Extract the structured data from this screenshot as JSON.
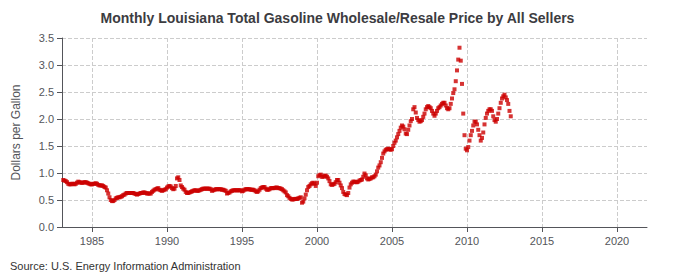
{
  "chart_data": {
    "type": "scatter",
    "title": "Monthly Louisiana Total Gasoline Wholesale/Resale Price by All Sellers",
    "ylabel": "Dollars per Gallon",
    "annotations": [
      "Source: U.S. Energy Information Administration"
    ],
    "color": "#CC0000",
    "marker": "square",
    "grid": true,
    "xlim": [
      1983,
      2022
    ],
    "ylim": [
      0.0,
      3.5
    ],
    "xticks": [
      1985,
      1990,
      1995,
      2000,
      2005,
      2010,
      2015,
      2020
    ],
    "yticks": [
      {
        "value": 0,
        "label": "0.0"
      },
      0.5,
      {
        "value": 1,
        "label": "1.0"
      },
      1.5,
      {
        "value": 2,
        "label": "2.0"
      },
      2.5,
      {
        "value": 3,
        "label": "3.0"
      },
      3.5
    ],
    "x": [
      1983.0833,
      1983.1667,
      1983.25,
      1983.3333,
      1983.4167,
      1983.5,
      1983.5833,
      1983.6667,
      1983.75,
      1983.8333,
      1983.9167,
      1984,
      1984.0833,
      1984.1667,
      1984.25,
      1984.3333,
      1984.4167,
      1984.5,
      1984.5833,
      1984.6667,
      1984.75,
      1984.8333,
      1984.9167,
      1985,
      1985.0833,
      1985.1667,
      1985.25,
      1985.3333,
      1985.4167,
      1985.5,
      1985.5833,
      1985.6667,
      1985.75,
      1985.8333,
      1985.9167,
      1986,
      1986.0833,
      1986.1667,
      1986.25,
      1986.3333,
      1986.4167,
      1986.5,
      1986.5833,
      1986.6667,
      1986.75,
      1986.8333,
      1986.9167,
      1987,
      1987.0833,
      1987.1667,
      1987.25,
      1987.3333,
      1987.4167,
      1987.5,
      1987.5833,
      1987.6667,
      1987.75,
      1987.8333,
      1987.9167,
      1988,
      1988.0833,
      1988.1667,
      1988.25,
      1988.3333,
      1988.4167,
      1988.5,
      1988.5833,
      1988.6667,
      1988.75,
      1988.8333,
      1988.9167,
      1989,
      1989.0833,
      1989.1667,
      1989.25,
      1989.3333,
      1989.4167,
      1989.5,
      1989.5833,
      1989.6667,
      1989.75,
      1989.8333,
      1989.9167,
      1990,
      1990.0833,
      1990.1667,
      1990.25,
      1990.3333,
      1990.4167,
      1990.5,
      1990.5833,
      1990.6667,
      1990.75,
      1990.8333,
      1990.9167,
      1991,
      1991.0833,
      1991.1667,
      1991.25,
      1991.3333,
      1991.4167,
      1991.5,
      1991.5833,
      1991.6667,
      1991.75,
      1991.8333,
      1991.9167,
      1992,
      1992.0833,
      1992.1667,
      1992.25,
      1992.3333,
      1992.4167,
      1992.5,
      1992.5833,
      1992.6667,
      1992.75,
      1992.8333,
      1992.9167,
      1993,
      1993.0833,
      1993.1667,
      1993.25,
      1993.3333,
      1993.4167,
      1993.5,
      1993.5833,
      1993.6667,
      1993.75,
      1993.8333,
      1993.9167,
      1994,
      1994.0833,
      1994.1667,
      1994.25,
      1994.3333,
      1994.4167,
      1994.5,
      1994.5833,
      1994.6667,
      1994.75,
      1994.8333,
      1994.9167,
      1995,
      1995.0833,
      1995.1667,
      1995.25,
      1995.3333,
      1995.4167,
      1995.5,
      1995.5833,
      1995.6667,
      1995.75,
      1995.8333,
      1995.9167,
      1996,
      1996.0833,
      1996.1667,
      1996.25,
      1996.3333,
      1996.4167,
      1996.5,
      1996.5833,
      1996.6667,
      1996.75,
      1996.8333,
      1996.9167,
      1997,
      1997.0833,
      1997.1667,
      1997.25,
      1997.3333,
      1997.4167,
      1997.5,
      1997.5833,
      1997.6667,
      1997.75,
      1997.8333,
      1997.9167,
      1998,
      1998.0833,
      1998.1667,
      1998.25,
      1998.3333,
      1998.4167,
      1998.5,
      1998.5833,
      1998.6667,
      1998.75,
      1998.8333,
      1998.9167,
      1999,
      1999.0833,
      1999.1667,
      1999.25,
      1999.3333,
      1999.4167,
      1999.5,
      1999.5833,
      1999.6667,
      1999.75,
      1999.8333,
      1999.9167,
      2000,
      2000.0833,
      2000.1667,
      2000.25,
      2000.3333,
      2000.4167,
      2000.5,
      2000.5833,
      2000.6667,
      2000.75,
      2000.8333,
      2000.9167,
      2001,
      2001.0833,
      2001.1667,
      2001.25,
      2001.3333,
      2001.4167,
      2001.5,
      2001.5833,
      2001.6667,
      2001.75,
      2001.8333,
      2001.9167,
      2002,
      2002.0833,
      2002.1667,
      2002.25,
      2002.3333,
      2002.4167,
      2002.5,
      2002.5833,
      2002.6667,
      2002.75,
      2002.8333,
      2002.9167,
      2003,
      2003.0833,
      2003.1667,
      2003.25,
      2003.3333,
      2003.4167,
      2003.5,
      2003.5833,
      2003.6667,
      2003.75,
      2003.8333,
      2003.9167,
      2004,
      2004.0833,
      2004.1667,
      2004.25,
      2004.3333,
      2004.4167,
      2004.5,
      2004.5833,
      2004.6667,
      2004.75,
      2004.8333,
      2004.9167,
      2005,
      2005.0833,
      2005.1667,
      2005.25,
      2005.3333,
      2005.4167,
      2005.5,
      2005.5833,
      2005.6667,
      2005.75,
      2005.8333,
      2005.9167,
      2006,
      2006.0833,
      2006.1667,
      2006.25,
      2006.3333,
      2006.4167,
      2006.5,
      2006.5833,
      2006.6667,
      2006.75,
      2006.8333,
      2006.9167,
      2007,
      2007.0833,
      2007.1667,
      2007.25,
      2007.3333,
      2007.4167,
      2007.5,
      2007.5833,
      2007.6667,
      2007.75,
      2007.8333,
      2007.9167,
      2008,
      2008.0833,
      2008.1667,
      2008.25,
      2008.3333,
      2008.4167,
      2008.5,
      2008.5833,
      2008.6667,
      2008.75,
      2008.8333,
      2008.9167,
      2009,
      2009.0833,
      2009.1667,
      2009.25,
      2009.3333,
      2009.4167,
      2009.5,
      2009.5833,
      2009.6667,
      2009.75,
      2009.8333,
      2009.9167,
      2010,
      2010.0833,
      2010.1667,
      2010.25,
      2010.3333,
      2010.4167,
      2010.5,
      2010.5833,
      2010.6667,
      2010.75,
      2010.8333,
      2010.9167,
      2011,
      2011.0833,
      2011.1667,
      2011.25,
      2011.3333,
      2011.4167,
      2011.5,
      2011.5833,
      2011.6667,
      2011.75,
      2011.8333,
      2011.9167,
      2012,
      2012.0833,
      2012.1667,
      2012.25,
      2012.3333,
      2012.4167,
      2012.5,
      2012.5833,
      2012.6667,
      2012.75,
      2012.8333,
      2012.9167
    ],
    "values": [
      0.87,
      0.86,
      0.85,
      0.83,
      0.8,
      0.79,
      0.79,
      0.8,
      0.8,
      0.79,
      0.8,
      0.82,
      0.84,
      0.83,
      0.82,
      0.82,
      0.82,
      0.83,
      0.83,
      0.82,
      0.81,
      0.8,
      0.79,
      0.79,
      0.8,
      0.8,
      0.81,
      0.8,
      0.78,
      0.77,
      0.77,
      0.77,
      0.76,
      0.74,
      0.73,
      0.68,
      0.62,
      0.55,
      0.5,
      0.48,
      0.48,
      0.5,
      0.53,
      0.54,
      0.55,
      0.55,
      0.56,
      0.57,
      0.59,
      0.6,
      0.62,
      0.63,
      0.63,
      0.63,
      0.63,
      0.63,
      0.63,
      0.62,
      0.61,
      0.6,
      0.61,
      0.62,
      0.63,
      0.63,
      0.64,
      0.64,
      0.63,
      0.62,
      0.62,
      0.62,
      0.62,
      0.65,
      0.67,
      0.69,
      0.7,
      0.71,
      0.72,
      0.69,
      0.68,
      0.67,
      0.68,
      0.69,
      0.7,
      0.73,
      0.75,
      0.76,
      0.75,
      0.72,
      0.7,
      0.71,
      0.76,
      0.9,
      0.92,
      0.87,
      0.77,
      0.74,
      0.71,
      0.69,
      0.65,
      0.63,
      0.63,
      0.64,
      0.65,
      0.66,
      0.67,
      0.68,
      0.68,
      0.67,
      0.67,
      0.68,
      0.69,
      0.7,
      0.71,
      0.71,
      0.71,
      0.71,
      0.71,
      0.71,
      0.7,
      0.67,
      0.68,
      0.69,
      0.7,
      0.7,
      0.7,
      0.7,
      0.7,
      0.69,
      0.69,
      0.68,
      0.67,
      0.62,
      0.63,
      0.64,
      0.66,
      0.67,
      0.68,
      0.68,
      0.68,
      0.68,
      0.68,
      0.68,
      0.68,
      0.66,
      0.67,
      0.69,
      0.7,
      0.7,
      0.7,
      0.7,
      0.69,
      0.69,
      0.69,
      0.68,
      0.66,
      0.65,
      0.66,
      0.69,
      0.72,
      0.73,
      0.74,
      0.74,
      0.71,
      0.69,
      0.69,
      0.7,
      0.72,
      0.72,
      0.72,
      0.72,
      0.73,
      0.73,
      0.72,
      0.72,
      0.71,
      0.7,
      0.68,
      0.66,
      0.64,
      0.59,
      0.57,
      0.54,
      0.52,
      0.51,
      0.51,
      0.52,
      0.52,
      0.52,
      0.53,
      0.54,
      0.55,
      0.45,
      0.47,
      0.53,
      0.6,
      0.68,
      0.74,
      0.76,
      0.79,
      0.81,
      0.82,
      0.8,
      0.76,
      0.82,
      0.94,
      0.96,
      0.97,
      0.93,
      0.93,
      0.95,
      0.95,
      0.93,
      0.9,
      0.85,
      0.79,
      0.78,
      0.79,
      0.8,
      0.83,
      0.87,
      0.87,
      0.82,
      0.77,
      0.72,
      0.65,
      0.61,
      0.6,
      0.59,
      0.63,
      0.73,
      0.79,
      0.82,
      0.84,
      0.84,
      0.83,
      0.83,
      0.84,
      0.86,
      0.87,
      0.88,
      0.93,
      0.99,
      0.96,
      0.9,
      0.88,
      0.89,
      0.9,
      0.92,
      0.92,
      0.94,
      0.97,
      1.03,
      1.1,
      1.14,
      1.2,
      1.28,
      1.36,
      1.4,
      1.43,
      1.44,
      1.45,
      1.44,
      1.43,
      1.44,
      1.5,
      1.56,
      1.6,
      1.66,
      1.72,
      1.78,
      1.84,
      1.88,
      1.86,
      1.81,
      1.73,
      1.72,
      1.8,
      1.88,
      1.96,
      2.0,
      2.18,
      2.22,
      2.12,
      2.02,
      1.98,
      1.95,
      1.96,
      1.98,
      2.04,
      2.1,
      2.18,
      2.22,
      2.24,
      2.22,
      2.2,
      2.15,
      2.1,
      2.06,
      2.1,
      2.15,
      2.2,
      2.22,
      2.25,
      2.28,
      2.3,
      2.3,
      2.25,
      2.2,
      2.18,
      2.2,
      2.28,
      2.38,
      2.48,
      2.55,
      2.7,
      2.9,
      3.1,
      3.32,
      3.08,
      2.65,
      2.1,
      1.7,
      1.45,
      1.42,
      1.48,
      1.6,
      1.7,
      1.78,
      1.88,
      1.95,
      1.95,
      1.9,
      1.8,
      1.7,
      1.6,
      1.65,
      1.75,
      1.9,
      2.02,
      2.1,
      2.15,
      2.18,
      2.18,
      2.15,
      2.05,
      1.98,
      1.95,
      2.0,
      2.1,
      2.2,
      2.3,
      2.38,
      2.42,
      2.45,
      2.4,
      2.35,
      2.28,
      2.15,
      2.05
    ]
  }
}
